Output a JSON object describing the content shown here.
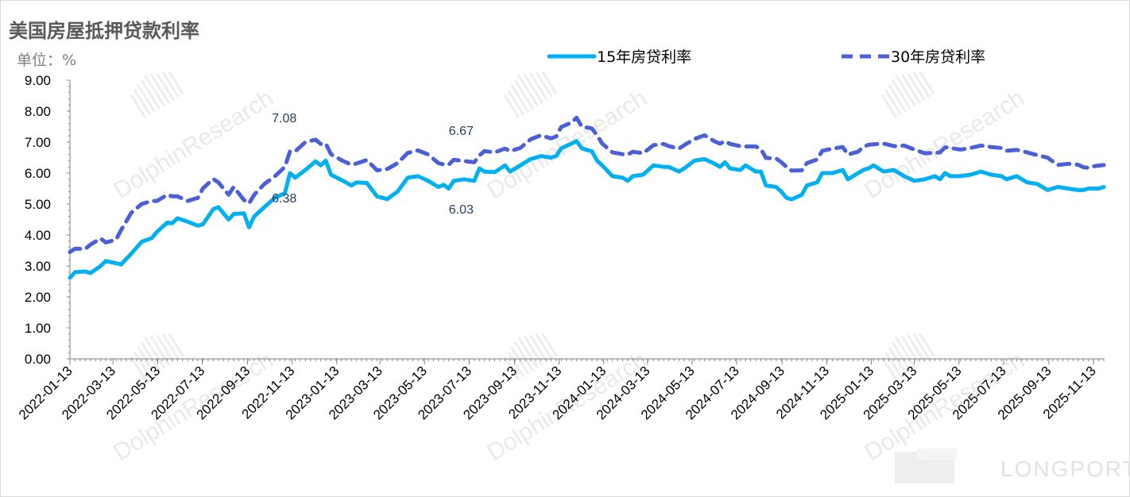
{
  "header": {
    "title": "美国房屋抵押贷款利率",
    "unit": "单位：%"
  },
  "watermark": {
    "text": "DolphinResearch",
    "logo_text": "LONGPORT"
  },
  "colors": {
    "series_15y": "#00b0f0",
    "series_30y": "#4a5fd8",
    "axis": "#808080",
    "annotation": "#1f3b5e"
  },
  "chart_data": {
    "type": "line",
    "title": "美国房屋抵押贷款利率",
    "ylabel": "单位：%",
    "ylim": [
      0,
      9
    ],
    "yticks": [
      "0.00",
      "1.00",
      "2.00",
      "3.00",
      "4.00",
      "5.00",
      "6.00",
      "7.00",
      "8.00",
      "9.00"
    ],
    "x_start": "2022-01-13",
    "x_end": "2025-11-27",
    "xticks": [
      "2022-01-13",
      "2022-03-13",
      "2022-05-13",
      "2022-07-13",
      "2022-09-13",
      "2022-11-13",
      "2023-01-13",
      "2023-03-13",
      "2023-05-13",
      "2023-07-13",
      "2023-09-13",
      "2023-11-13",
      "2024-01-13",
      "2024-03-13",
      "2024-05-13",
      "2024-07-13",
      "2024-09-13",
      "2024-11-13",
      "2025-01-13",
      "2025-03-13",
      "2025-05-13",
      "2025-07-13",
      "2025-09-13",
      "2025-11-13"
    ],
    "legend_position": "top",
    "grid": false,
    "series": [
      {
        "name": "15年房贷利率",
        "style": "solid",
        "points": [
          [
            "2022-01-13",
            2.62
          ],
          [
            "2022-01-20",
            2.8
          ],
          [
            "2022-02-03",
            2.82
          ],
          [
            "2022-02-10",
            2.77
          ],
          [
            "2022-02-24",
            3.0
          ],
          [
            "2022-03-03",
            3.16
          ],
          [
            "2022-03-17",
            3.09
          ],
          [
            "2022-03-24",
            3.05
          ],
          [
            "2022-04-07",
            3.4
          ],
          [
            "2022-04-21",
            3.78
          ],
          [
            "2022-05-05",
            3.9
          ],
          [
            "2022-05-12",
            4.1
          ],
          [
            "2022-05-26",
            4.4
          ],
          [
            "2022-06-02",
            4.38
          ],
          [
            "2022-06-09",
            4.54
          ],
          [
            "2022-06-23",
            4.43
          ],
          [
            "2022-07-07",
            4.3
          ],
          [
            "2022-07-14",
            4.35
          ],
          [
            "2022-07-28",
            4.83
          ],
          [
            "2022-08-04",
            4.9
          ],
          [
            "2022-08-18",
            4.5
          ],
          [
            "2022-08-25",
            4.68
          ],
          [
            "2022-09-08",
            4.7
          ],
          [
            "2022-09-15",
            4.25
          ],
          [
            "2022-09-22",
            4.6
          ],
          [
            "2022-10-06",
            4.9
          ],
          [
            "2022-10-20",
            5.2
          ],
          [
            "2022-11-03",
            5.35
          ],
          [
            "2022-11-10",
            6.0
          ],
          [
            "2022-11-17",
            5.85
          ],
          [
            "2022-12-01",
            6.1
          ],
          [
            "2022-12-15",
            6.38
          ],
          [
            "2022-12-22",
            6.25
          ],
          [
            "2022-12-29",
            6.4
          ],
          [
            "2023-01-05",
            5.95
          ],
          [
            "2023-01-19",
            5.78
          ],
          [
            "2023-02-02",
            5.6
          ],
          [
            "2023-02-09",
            5.7
          ],
          [
            "2023-02-23",
            5.68
          ],
          [
            "2023-03-09",
            5.25
          ],
          [
            "2023-03-23",
            5.16
          ],
          [
            "2023-04-06",
            5.4
          ],
          [
            "2023-04-20",
            5.85
          ],
          [
            "2023-05-04",
            5.9
          ],
          [
            "2023-05-18",
            5.75
          ],
          [
            "2023-06-01",
            5.55
          ],
          [
            "2023-06-08",
            5.62
          ],
          [
            "2023-06-15",
            5.5
          ],
          [
            "2023-06-22",
            5.75
          ],
          [
            "2023-07-06",
            5.8
          ],
          [
            "2023-07-20",
            5.75
          ],
          [
            "2023-07-27",
            6.15
          ],
          [
            "2023-08-03",
            6.05
          ],
          [
            "2023-08-17",
            6.03
          ],
          [
            "2023-08-31",
            6.25
          ],
          [
            "2023-09-07",
            6.05
          ],
          [
            "2023-09-21",
            6.25
          ],
          [
            "2023-10-05",
            6.45
          ],
          [
            "2023-10-19",
            6.55
          ],
          [
            "2023-11-02",
            6.5
          ],
          [
            "2023-11-09",
            6.55
          ],
          [
            "2023-11-16",
            6.8
          ],
          [
            "2023-11-30",
            6.95
          ],
          [
            "2023-12-07",
            7.03
          ],
          [
            "2023-12-14",
            6.8
          ],
          [
            "2023-12-28",
            6.7
          ],
          [
            "2024-01-04",
            6.4
          ],
          [
            "2024-01-11",
            6.25
          ],
          [
            "2024-01-25",
            5.9
          ],
          [
            "2024-02-08",
            5.85
          ],
          [
            "2024-02-15",
            5.75
          ],
          [
            "2024-02-22",
            5.9
          ],
          [
            "2024-03-07",
            5.95
          ],
          [
            "2024-03-14",
            6.1
          ],
          [
            "2024-03-21",
            6.25
          ],
          [
            "2024-04-04",
            6.2
          ],
          [
            "2024-04-11",
            6.2
          ],
          [
            "2024-04-25",
            6.05
          ],
          [
            "2024-05-02",
            6.15
          ],
          [
            "2024-05-16",
            6.4
          ],
          [
            "2024-05-30",
            6.45
          ],
          [
            "2024-06-13",
            6.3
          ],
          [
            "2024-06-20",
            6.2
          ],
          [
            "2024-06-27",
            6.35
          ],
          [
            "2024-07-04",
            6.15
          ],
          [
            "2024-07-18",
            6.1
          ],
          [
            "2024-07-25",
            6.25
          ],
          [
            "2024-08-08",
            6.05
          ],
          [
            "2024-08-15",
            6.05
          ],
          [
            "2024-08-22",
            5.6
          ],
          [
            "2024-09-05",
            5.55
          ],
          [
            "2024-09-12",
            5.4
          ],
          [
            "2024-09-19",
            5.2
          ],
          [
            "2024-09-26",
            5.15
          ],
          [
            "2024-10-10",
            5.3
          ],
          [
            "2024-10-17",
            5.6
          ],
          [
            "2024-10-31",
            5.7
          ],
          [
            "2024-11-07",
            6.0
          ],
          [
            "2024-11-21",
            6.0
          ],
          [
            "2024-12-05",
            6.1
          ],
          [
            "2024-12-12",
            5.8
          ],
          [
            "2024-12-26",
            6.0
          ],
          [
            "2025-01-02",
            6.1
          ],
          [
            "2025-01-09",
            6.15
          ],
          [
            "2025-01-16",
            6.25
          ],
          [
            "2025-01-30",
            6.05
          ],
          [
            "2025-02-13",
            6.1
          ],
          [
            "2025-02-27",
            5.9
          ],
          [
            "2025-03-13",
            5.75
          ],
          [
            "2025-03-27",
            5.8
          ],
          [
            "2025-04-10",
            5.9
          ],
          [
            "2025-04-17",
            5.8
          ],
          [
            "2025-04-24",
            6.0
          ],
          [
            "2025-05-01",
            5.9
          ],
          [
            "2025-05-15",
            5.9
          ],
          [
            "2025-05-29",
            5.95
          ],
          [
            "2025-06-12",
            6.05
          ],
          [
            "2025-06-26",
            5.95
          ],
          [
            "2025-07-10",
            5.9
          ],
          [
            "2025-07-17",
            5.8
          ],
          [
            "2025-07-31",
            5.9
          ],
          [
            "2025-08-14",
            5.7
          ],
          [
            "2025-08-28",
            5.65
          ],
          [
            "2025-09-11",
            5.45
          ],
          [
            "2025-09-25",
            5.55
          ],
          [
            "2025-10-09",
            5.5
          ],
          [
            "2025-10-23",
            5.45
          ],
          [
            "2025-10-30",
            5.45
          ],
          [
            "2025-11-06",
            5.5
          ],
          [
            "2025-11-13",
            5.5
          ],
          [
            "2025-11-20",
            5.5
          ],
          [
            "2025-11-27",
            5.55
          ]
        ]
      },
      {
        "name": "30年房贷利率",
        "style": "dashed",
        "points": [
          [
            "2022-01-13",
            3.45
          ],
          [
            "2022-01-20",
            3.56
          ],
          [
            "2022-02-03",
            3.55
          ],
          [
            "2022-02-10",
            3.69
          ],
          [
            "2022-02-24",
            3.89
          ],
          [
            "2022-03-03",
            3.76
          ],
          [
            "2022-03-17",
            3.85
          ],
          [
            "2022-03-24",
            4.16
          ],
          [
            "2022-04-07",
            4.72
          ],
          [
            "2022-04-21",
            5.0
          ],
          [
            "2022-05-05",
            5.1
          ],
          [
            "2022-05-12",
            5.1
          ],
          [
            "2022-05-26",
            5.3
          ],
          [
            "2022-06-02",
            5.25
          ],
          [
            "2022-06-09",
            5.25
          ],
          [
            "2022-06-23",
            5.1
          ],
          [
            "2022-07-07",
            5.2
          ],
          [
            "2022-07-14",
            5.51
          ],
          [
            "2022-07-28",
            5.81
          ],
          [
            "2022-08-04",
            5.7
          ],
          [
            "2022-08-18",
            5.3
          ],
          [
            "2022-08-25",
            5.55
          ],
          [
            "2022-09-08",
            5.13
          ],
          [
            "2022-09-15",
            5.02
          ],
          [
            "2022-09-22",
            5.3
          ],
          [
            "2022-10-06",
            5.65
          ],
          [
            "2022-10-20",
            5.89
          ],
          [
            "2022-11-03",
            6.2
          ],
          [
            "2022-11-10",
            6.7
          ],
          [
            "2022-11-17",
            6.7
          ],
          [
            "2022-12-01",
            7.0
          ],
          [
            "2022-12-15",
            7.08
          ],
          [
            "2022-12-22",
            6.94
          ],
          [
            "2022-12-29",
            6.95
          ],
          [
            "2023-01-05",
            6.61
          ],
          [
            "2023-01-19",
            6.42
          ],
          [
            "2023-02-02",
            6.27
          ],
          [
            "2023-02-09",
            6.31
          ],
          [
            "2023-02-23",
            6.42
          ],
          [
            "2023-03-09",
            6.09
          ],
          [
            "2023-03-23",
            6.13
          ],
          [
            "2023-04-06",
            6.32
          ],
          [
            "2023-04-20",
            6.65
          ],
          [
            "2023-05-04",
            6.73
          ],
          [
            "2023-05-18",
            6.6
          ],
          [
            "2023-06-01",
            6.32
          ],
          [
            "2023-06-08",
            6.28
          ],
          [
            "2023-06-15",
            6.27
          ],
          [
            "2023-06-22",
            6.43
          ],
          [
            "2023-07-06",
            6.39
          ],
          [
            "2023-07-20",
            6.35
          ],
          [
            "2023-07-27",
            6.57
          ],
          [
            "2023-08-03",
            6.71
          ],
          [
            "2023-08-17",
            6.67
          ],
          [
            "2023-08-31",
            6.79
          ],
          [
            "2023-09-07",
            6.71
          ],
          [
            "2023-09-21",
            6.81
          ],
          [
            "2023-10-05",
            7.09
          ],
          [
            "2023-10-19",
            7.22
          ],
          [
            "2023-11-02",
            7.12
          ],
          [
            "2023-11-09",
            7.18
          ],
          [
            "2023-11-16",
            7.49
          ],
          [
            "2023-11-30",
            7.63
          ],
          [
            "2023-12-07",
            7.79
          ],
          [
            "2023-12-14",
            7.5
          ],
          [
            "2023-12-28",
            7.44
          ],
          [
            "2024-01-04",
            7.22
          ],
          [
            "2024-01-11",
            6.95
          ],
          [
            "2024-01-25",
            6.67
          ],
          [
            "2024-02-08",
            6.61
          ],
          [
            "2024-02-15",
            6.6
          ],
          [
            "2024-02-22",
            6.69
          ],
          [
            "2024-03-07",
            6.64
          ],
          [
            "2024-03-14",
            6.77
          ],
          [
            "2024-03-21",
            6.9
          ],
          [
            "2024-04-04",
            6.94
          ],
          [
            "2024-04-11",
            6.87
          ],
          [
            "2024-04-25",
            6.79
          ],
          [
            "2024-05-02",
            6.9
          ],
          [
            "2024-05-16",
            7.1
          ],
          [
            "2024-05-30",
            7.22
          ],
          [
            "2024-06-13",
            7.02
          ],
          [
            "2024-06-20",
            6.95
          ],
          [
            "2024-06-27",
            7.03
          ],
          [
            "2024-07-04",
            6.94
          ],
          [
            "2024-07-18",
            6.87
          ],
          [
            "2024-07-25",
            6.86
          ],
          [
            "2024-08-08",
            6.86
          ],
          [
            "2024-08-15",
            6.78
          ],
          [
            "2024-08-22",
            6.49
          ],
          [
            "2024-09-05",
            6.47
          ],
          [
            "2024-09-12",
            6.35
          ],
          [
            "2024-09-19",
            6.2
          ],
          [
            "2024-09-26",
            6.08
          ],
          [
            "2024-10-10",
            6.09
          ],
          [
            "2024-10-17",
            6.32
          ],
          [
            "2024-10-31",
            6.44
          ],
          [
            "2024-11-07",
            6.72
          ],
          [
            "2024-11-21",
            6.79
          ],
          [
            "2024-12-05",
            6.84
          ],
          [
            "2024-12-12",
            6.6
          ],
          [
            "2024-12-26",
            6.69
          ],
          [
            "2025-01-02",
            6.85
          ],
          [
            "2025-01-09",
            6.91
          ],
          [
            "2025-01-16",
            6.93
          ],
          [
            "2025-01-30",
            6.95
          ],
          [
            "2025-02-13",
            6.87
          ],
          [
            "2025-02-27",
            6.89
          ],
          [
            "2025-03-13",
            6.76
          ],
          [
            "2025-03-27",
            6.64
          ],
          [
            "2025-04-10",
            6.65
          ],
          [
            "2025-04-17",
            6.67
          ],
          [
            "2025-04-24",
            6.83
          ],
          [
            "2025-05-01",
            6.81
          ],
          [
            "2025-05-15",
            6.76
          ],
          [
            "2025-05-29",
            6.81
          ],
          [
            "2025-06-12",
            6.89
          ],
          [
            "2025-06-26",
            6.84
          ],
          [
            "2025-07-10",
            6.81
          ],
          [
            "2025-07-17",
            6.72
          ],
          [
            "2025-07-31",
            6.75
          ],
          [
            "2025-08-14",
            6.67
          ],
          [
            "2025-08-28",
            6.58
          ],
          [
            "2025-09-11",
            6.5
          ],
          [
            "2025-09-25",
            6.26
          ],
          [
            "2025-10-09",
            6.3
          ],
          [
            "2025-10-23",
            6.27
          ],
          [
            "2025-10-30",
            6.19
          ],
          [
            "2025-11-06",
            6.17
          ],
          [
            "2025-11-13",
            6.22
          ],
          [
            "2025-11-20",
            6.24
          ],
          [
            "2025-11-27",
            6.26
          ]
        ]
      }
    ],
    "annotations": [
      {
        "text": "7.08",
        "date": "2022-11-13",
        "value": 7.08,
        "placement": "above"
      },
      {
        "text": "6.38",
        "date": "2022-11-13",
        "value": 6.38,
        "placement": "below"
      },
      {
        "text": "6.67",
        "date": "2023-07-13",
        "value": 6.67,
        "placement": "above"
      },
      {
        "text": "6.03",
        "date": "2023-07-13",
        "value": 6.03,
        "placement": "below"
      }
    ]
  }
}
